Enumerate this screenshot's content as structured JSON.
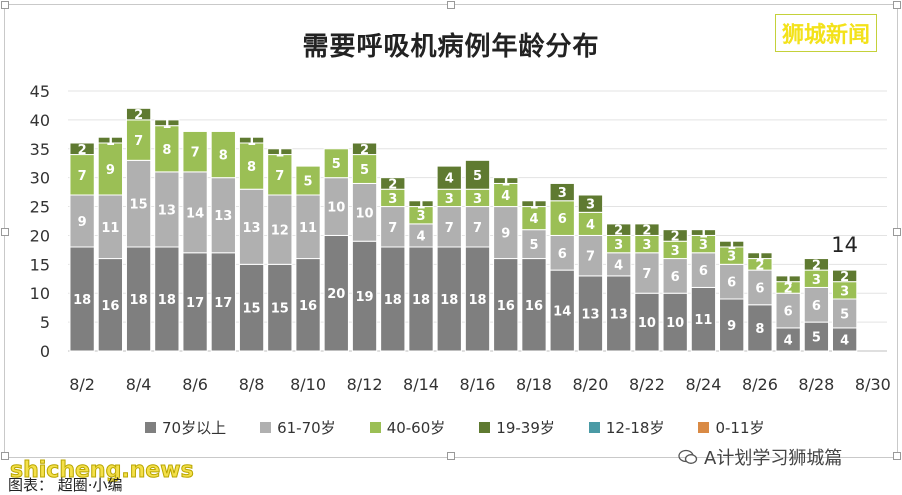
{
  "brand": "狮城新闻",
  "watermark_left": "shicheng.news",
  "watermark_right": "A计划学习狮城篇",
  "caption": "图表： 超圈·小编",
  "colors": {
    "70岁以上": "#7f7f7f",
    "61-70岁": "#b0b0b0",
    "40-60岁": "#9bbf55",
    "19-39岁": "#5f7a31",
    "12-18岁": "#4a9aa5",
    "0-11岁": "#d98a45"
  },
  "chart_data": {
    "type": "bar",
    "stacked": true,
    "title": "需要呼吸机病例年龄分布",
    "xlabel": "",
    "ylabel": "",
    "ylim": [
      0,
      45
    ],
    "yticks": [
      0,
      5,
      10,
      15,
      20,
      25,
      30,
      35,
      40,
      45
    ],
    "grid": true,
    "legend_position": "bottom",
    "categories": [
      "8/2",
      "8/3",
      "8/4",
      "8/5",
      "8/6",
      "8/7",
      "8/8",
      "8/9",
      "8/10",
      "8/11",
      "8/12",
      "8/13",
      "8/14",
      "8/15",
      "8/16",
      "8/17",
      "8/18",
      "8/19",
      "8/20",
      "8/21",
      "8/22",
      "8/23",
      "8/24",
      "8/25",
      "8/26",
      "8/27",
      "8/28",
      "8/29",
      "8/30"
    ],
    "x_tick_labels": [
      "8/2",
      "8/4",
      "8/6",
      "8/8",
      "8/10",
      "8/12",
      "8/14",
      "8/16",
      "8/18",
      "8/20",
      "8/22",
      "8/24",
      "8/26",
      "8/28",
      "8/30"
    ],
    "series": [
      {
        "name": "70岁以上",
        "values": [
          18,
          16,
          18,
          18,
          17,
          17,
          15,
          15,
          16,
          20,
          19,
          18,
          18,
          18,
          18,
          16,
          16,
          14,
          13,
          13,
          10,
          10,
          11,
          9,
          8,
          4,
          5,
          4,
          null
        ]
      },
      {
        "name": "61-70岁",
        "values": [
          9,
          11,
          15,
          13,
          14,
          13,
          13,
          12,
          11,
          10,
          10,
          7,
          4,
          7,
          7,
          9,
          5,
          6,
          7,
          4,
          7,
          6,
          6,
          6,
          6,
          6,
          6,
          5,
          null
        ]
      },
      {
        "name": "40-60岁",
        "values": [
          7,
          9,
          7,
          8,
          7,
          8,
          8,
          7,
          5,
          5,
          5,
          3,
          3,
          3,
          3,
          4,
          4,
          6,
          4,
          3,
          3,
          3,
          3,
          3,
          2,
          2,
          3,
          3,
          null
        ]
      },
      {
        "name": "19-39岁",
        "values": [
          2,
          1,
          2,
          1,
          0,
          0,
          1,
          1,
          0,
          0,
          2,
          2,
          1,
          4,
          5,
          1,
          1,
          3,
          3,
          2,
          2,
          2,
          1,
          1,
          1,
          1,
          2,
          2,
          null
        ]
      },
      {
        "name": "12-18岁",
        "values": [
          0,
          0,
          0,
          0,
          0,
          0,
          0,
          0,
          0,
          0,
          0,
          0,
          0,
          0,
          0,
          0,
          0,
          0,
          0,
          0,
          0,
          0,
          0,
          0,
          0,
          0,
          0,
          0,
          null
        ]
      },
      {
        "name": "0-11岁",
        "values": [
          0,
          0,
          0,
          0,
          0,
          0,
          0,
          0,
          0,
          0,
          0,
          0,
          0,
          0,
          0,
          0,
          0,
          0,
          0,
          0,
          0,
          0,
          0,
          0,
          0,
          0,
          0,
          0,
          null
        ]
      }
    ],
    "annotations": [
      {
        "category": "8/29",
        "label": "14"
      }
    ]
  }
}
